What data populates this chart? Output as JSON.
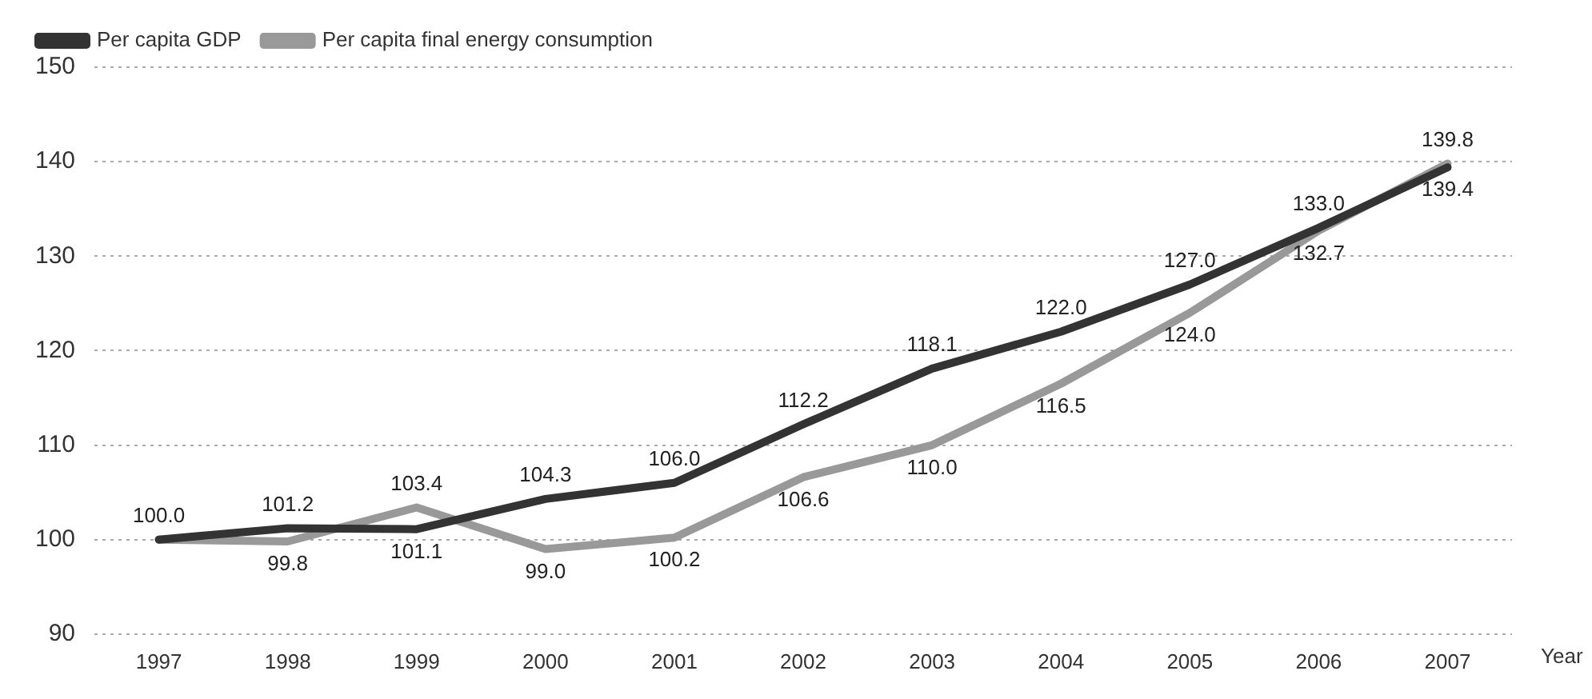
{
  "chart_data": {
    "type": "line",
    "xlabel": "Year",
    "categories": [
      "1997",
      "1998",
      "1999",
      "2000",
      "2001",
      "2002",
      "2003",
      "2004",
      "2005",
      "2006",
      "2007"
    ],
    "series": [
      {
        "name": "Per capita GDP",
        "color": "#333333",
        "values": [
          100.0,
          101.2,
          101.1,
          104.3,
          106.0,
          112.2,
          118.1,
          122.0,
          127.0,
          133.0,
          139.4
        ],
        "value_labels": [
          "100.0",
          "101.2",
          "101.1",
          "104.3",
          "106.0",
          "112.2",
          "118.1",
          "122.0",
          "127.0",
          "133.0",
          "139.4"
        ]
      },
      {
        "name": "Per capita final energy consumption",
        "color": "#999999",
        "values": [
          100.0,
          99.8,
          103.4,
          99.0,
          100.2,
          106.6,
          110.0,
          116.5,
          124.0,
          132.7,
          139.8
        ],
        "value_labels": [
          null,
          "99.8",
          "103.4",
          "99.0",
          "100.2",
          "106.6",
          "110.0",
          "116.5",
          "124.0",
          "132.7",
          "139.8"
        ]
      }
    ],
    "ylim": [
      90,
      150
    ],
    "yticks": [
      90,
      100,
      110,
      120,
      130,
      140,
      150
    ],
    "grid": "y",
    "legend": "top left",
    "marker": "none",
    "line_style": "solid"
  }
}
